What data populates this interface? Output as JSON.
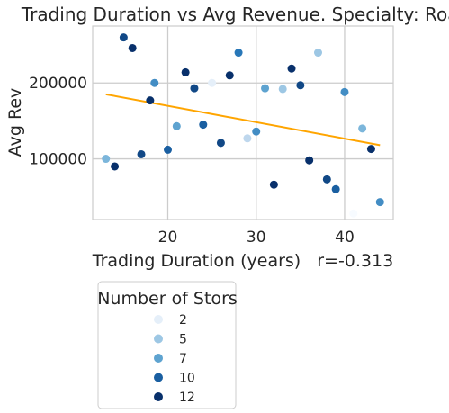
{
  "chart_data": {
    "type": "scatter",
    "title": "Trading Duration vs Avg Revenue. Specialty: Road",
    "xlabel": "Trading Duration (years)",
    "annotation": "r=-0.313",
    "ylabel": "Avg Rev",
    "xlim": [
      11.5,
      45.5
    ],
    "ylim": [
      20000,
      275000
    ],
    "x_ticks": [
      20,
      30,
      40
    ],
    "y_ticks": [
      100000,
      200000
    ],
    "x_tick_labels": [
      "20",
      "30",
      "40"
    ],
    "y_tick_labels": [
      "100000",
      "200000"
    ],
    "grid": true,
    "color_scale": {
      "name": "Blues",
      "min": 1,
      "max": 12
    },
    "trendline": {
      "color": "#ffa500",
      "x": [
        13,
        44
      ],
      "y": [
        185000,
        118000
      ]
    },
    "points": [
      {
        "x": 13,
        "y": 100000,
        "stores": 6
      },
      {
        "x": 14,
        "y": 90000,
        "stores": 12
      },
      {
        "x": 15,
        "y": 260000,
        "stores": 11
      },
      {
        "x": 16,
        "y": 246000,
        "stores": 12
      },
      {
        "x": 17,
        "y": 106000,
        "stores": 11
      },
      {
        "x": 18,
        "y": 177000,
        "stores": 12
      },
      {
        "x": 18.5,
        "y": 200000,
        "stores": 8
      },
      {
        "x": 20,
        "y": 112000,
        "stores": 10
      },
      {
        "x": 21,
        "y": 143000,
        "stores": 7
      },
      {
        "x": 22,
        "y": 214000,
        "stores": 13
      },
      {
        "x": 23,
        "y": 193000,
        "stores": 11
      },
      {
        "x": 24,
        "y": 145000,
        "stores": 10
      },
      {
        "x": 25,
        "y": 200000,
        "stores": 2
      },
      {
        "x": 26,
        "y": 121000,
        "stores": 11
      },
      {
        "x": 27,
        "y": 210000,
        "stores": 12
      },
      {
        "x": 28,
        "y": 240000,
        "stores": 9
      },
      {
        "x": 29,
        "y": 127000,
        "stores": 4
      },
      {
        "x": 30,
        "y": 136000,
        "stores": 8
      },
      {
        "x": 31,
        "y": 193000,
        "stores": 7
      },
      {
        "x": 32,
        "y": 66000,
        "stores": 13
      },
      {
        "x": 33,
        "y": 192000,
        "stores": 5
      },
      {
        "x": 34,
        "y": 219000,
        "stores": 12
      },
      {
        "x": 35,
        "y": 197000,
        "stores": 11
      },
      {
        "x": 36,
        "y": 98000,
        "stores": 12
      },
      {
        "x": 37,
        "y": 240000,
        "stores": 5
      },
      {
        "x": 38,
        "y": 73000,
        "stores": 11
      },
      {
        "x": 39,
        "y": 60000,
        "stores": 10
      },
      {
        "x": 40,
        "y": 188000,
        "stores": 8
      },
      {
        "x": 41,
        "y": 28000,
        "stores": 1
      },
      {
        "x": 42,
        "y": 140000,
        "stores": 6
      },
      {
        "x": 43,
        "y": 113000,
        "stores": 12
      },
      {
        "x": 44,
        "y": 43000,
        "stores": 8
      }
    ],
    "legend": {
      "title": "Number of Stors",
      "placement": "below",
      "entries": [
        {
          "label": "2",
          "stores": 2
        },
        {
          "label": "5",
          "stores": 5
        },
        {
          "label": "7",
          "stores": 7
        },
        {
          "label": "10",
          "stores": 10
        },
        {
          "label": "12",
          "stores": 12
        }
      ]
    }
  }
}
